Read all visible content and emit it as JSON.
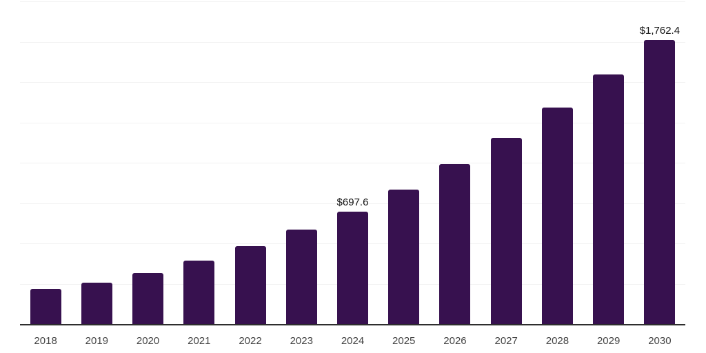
{
  "chart_data": {
    "type": "bar",
    "title": "",
    "xlabel": "",
    "ylabel": "",
    "categories": [
      "2018",
      "2019",
      "2020",
      "2021",
      "2022",
      "2023",
      "2024",
      "2025",
      "2026",
      "2027",
      "2028",
      "2029",
      "2030"
    ],
    "values": [
      220,
      258,
      318,
      395,
      483,
      585,
      697.6,
      833,
      990,
      1155,
      1340,
      1545,
      1762.4
    ],
    "point_labels": [
      {
        "category": "2024",
        "text": "$697.6"
      },
      {
        "category": "2030",
        "text": "$1,762.4"
      }
    ],
    "ylim": [
      0,
      2000
    ],
    "grid_step": 250,
    "grid_visible": true,
    "y_tick_labels_visible": false,
    "legend": "none",
    "colors": {
      "bar": "#37114f",
      "grid": "#f2f2f2",
      "axis_line": "#2e2e2e",
      "tick_label": "#444444",
      "value_label": "#111111",
      "background": "#ffffff"
    }
  }
}
